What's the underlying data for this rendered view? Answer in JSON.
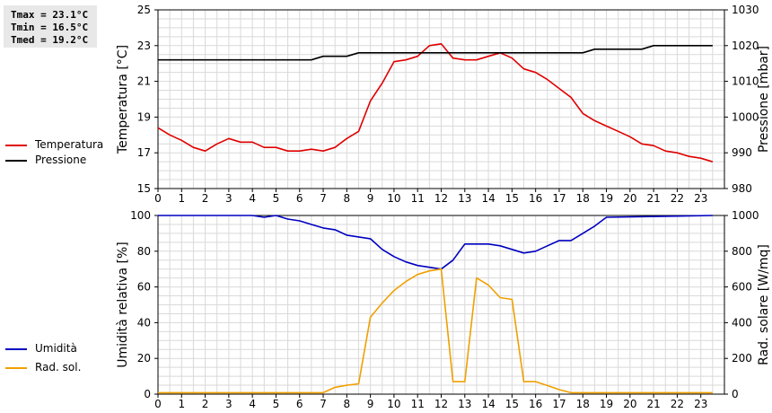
{
  "stats": {
    "tmax": "Tmax = 23.1°C",
    "tmin": "Tmin = 16.5°C",
    "tmed": "Tmed = 19.2°C"
  },
  "legend_top": [
    {
      "label": "Temperatura",
      "color": "#e00000"
    },
    {
      "label": "Pressione",
      "color": "#000000"
    }
  ],
  "legend_bottom": [
    {
      "label": "Umidità",
      "color": "#0000c0"
    },
    {
      "label": "Rad. sol.",
      "color": "#f0a000"
    }
  ],
  "chart_data": [
    {
      "type": "line",
      "ylabel": "Temperatura [°C]",
      "y2label": "Pressione [mbar]",
      "xlim": [
        0,
        24
      ],
      "ylim": [
        15,
        25
      ],
      "y2lim": [
        980,
        1030
      ],
      "x_ticks": [
        "0",
        "1",
        "2",
        "3",
        "4",
        "5",
        "6",
        "7",
        "8",
        "9",
        "10",
        "11",
        "12",
        "13",
        "14",
        "15",
        "16",
        "17",
        "18",
        "19",
        "20",
        "21",
        "22",
        "23"
      ],
      "y_ticks": [
        "15",
        "17",
        "19",
        "21",
        "23",
        "25"
      ],
      "y2_ticks": [
        "980",
        "990",
        "1000",
        "1010",
        "1020",
        "1030"
      ],
      "grid": true,
      "series": [
        {
          "name": "Temperatura",
          "axis": "left",
          "color": "#e00000",
          "x": [
            0,
            0.5,
            1,
            1.5,
            2,
            2.5,
            3,
            3.5,
            4,
            4.5,
            5,
            5.5,
            6,
            6.5,
            7,
            7.5,
            8,
            8.5,
            9,
            9.5,
            10,
            10.5,
            11,
            11.5,
            12,
            12.5,
            13,
            13.5,
            14,
            14.5,
            15,
            15.5,
            16,
            16.5,
            17,
            17.5,
            18,
            18.5,
            19,
            19.5,
            20,
            20.5,
            21,
            21.5,
            22,
            22.5,
            23,
            23.5
          ],
          "y": [
            18.4,
            18.0,
            17.7,
            17.3,
            17.1,
            17.5,
            17.8,
            17.6,
            17.6,
            17.3,
            17.3,
            17.1,
            17.1,
            17.2,
            17.1,
            17.3,
            17.8,
            18.2,
            19.9,
            20.9,
            22.1,
            22.2,
            22.4,
            23.0,
            23.1,
            22.3,
            22.2,
            22.2,
            22.4,
            22.6,
            22.3,
            21.7,
            21.5,
            21.1,
            20.6,
            20.1,
            19.2,
            18.8,
            18.5,
            18.2,
            17.9,
            17.5,
            17.4,
            17.1,
            17.0,
            16.8,
            16.7,
            16.5
          ]
        },
        {
          "name": "Pressione",
          "axis": "right",
          "color": "#000000",
          "x": [
            0,
            6.5,
            7,
            8,
            8.5,
            11,
            18,
            18.5,
            20.5,
            21,
            23.5
          ],
          "y": [
            1016,
            1016,
            1017,
            1017,
            1018,
            1018,
            1018,
            1019,
            1019,
            1020,
            1020
          ]
        }
      ]
    },
    {
      "type": "line",
      "ylabel": "Umidità relativa [%]",
      "y2label": "Rad. solare [W/mq]",
      "xlim": [
        0,
        24
      ],
      "ylim": [
        0,
        100
      ],
      "y2lim": [
        0,
        1000
      ],
      "x_ticks": [
        "0",
        "1",
        "2",
        "3",
        "4",
        "5",
        "6",
        "7",
        "8",
        "9",
        "10",
        "11",
        "12",
        "13",
        "14",
        "15",
        "16",
        "17",
        "18",
        "19",
        "20",
        "21",
        "22",
        "23"
      ],
      "y_ticks": [
        "0",
        "20",
        "40",
        "60",
        "80",
        "100"
      ],
      "y2_ticks": [
        "0",
        "200",
        "400",
        "600",
        "800",
        "1000"
      ],
      "grid": true,
      "series": [
        {
          "name": "Umidità",
          "axis": "left",
          "color": "#0000c0",
          "x": [
            0,
            4,
            4.5,
            5,
            5.5,
            6,
            6.5,
            7,
            7.5,
            8,
            8.5,
            9,
            9.5,
            10,
            10.5,
            11,
            11.5,
            12,
            12.5,
            13,
            13.5,
            14,
            14.5,
            15,
            15.5,
            16,
            16.5,
            17,
            17.5,
            18,
            18.5,
            19,
            23.5
          ],
          "y": [
            100,
            100,
            99,
            100,
            98,
            97,
            95,
            93,
            92,
            89,
            88,
            87,
            81,
            77,
            74,
            72,
            71,
            70,
            75,
            84,
            84,
            84,
            83,
            81,
            79,
            80,
            83,
            86,
            86,
            90,
            94,
            99,
            100
          ]
        },
        {
          "name": "Rad. sol.",
          "axis": "right",
          "color": "#f0a000",
          "x": [
            0,
            7,
            7.5,
            8,
            8.5,
            9,
            9.5,
            10,
            10.5,
            11,
            11.5,
            12,
            12.5,
            13,
            13.5,
            14,
            14.5,
            15,
            15.5,
            16,
            16.5,
            17,
            17.5,
            23.5
          ],
          "y": [
            8,
            8,
            38,
            50,
            58,
            430,
            510,
            580,
            630,
            670,
            690,
            700,
            70,
            70,
            650,
            610,
            540,
            530,
            70,
            70,
            48,
            25,
            8,
            8
          ]
        }
      ]
    }
  ]
}
